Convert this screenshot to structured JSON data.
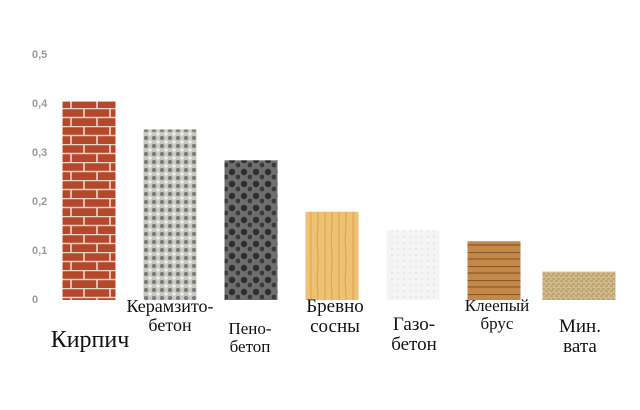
{
  "chart_data": {
    "type": "bar",
    "categories": [
      "Кирпич",
      "Керамзито-\nбетон",
      "Пено-\nбетоп",
      "Бревно\nсосны",
      "Газо-\nбетон",
      "Клеепый\nбрус",
      "Мин.\nвата"
    ],
    "values": [
      0.405,
      0.348,
      0.285,
      0.18,
      0.142,
      0.12,
      0.058
    ],
    "colors": [
      "#b5472a",
      "#c9c9c4",
      "#6e6e6e",
      "#efc174",
      "#f4f4f4",
      "#c4894a",
      "#d1bb8a"
    ],
    "ylim": [
      0,
      0.5
    ],
    "yticks": [
      0,
      {
        "value": 0.1,
        "label": "0,1"
      },
      {
        "value": 0.2,
        "label": "0,2"
      },
      {
        "value": 0.3,
        "label": "0,3"
      },
      {
        "value": 0.4,
        "label": "0,4"
      },
      {
        "value": 0.5,
        "label": "0,5"
      }
    ],
    "grid": false
  }
}
